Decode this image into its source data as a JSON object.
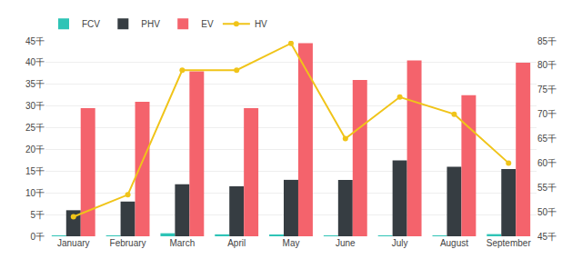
{
  "chart_data": {
    "type": "bar",
    "categories": [
      "January",
      "February",
      "March",
      "April",
      "May",
      "June",
      "July",
      "August",
      "September"
    ],
    "series": [
      {
        "name": "FCV",
        "color": "#2ec4b6",
        "values": [
          0.15,
          0.15,
          0.7,
          0.45,
          0.3,
          0.1,
          0.2,
          0.15,
          0.5
        ]
      },
      {
        "name": "PHV",
        "color": "#363d42",
        "values": [
          6,
          8,
          12,
          11.5,
          13,
          13,
          17.5,
          16,
          15.5
        ]
      },
      {
        "name": "EV",
        "color": "#f4636c",
        "values": [
          29.5,
          31,
          38,
          29.5,
          44.5,
          36,
          40.5,
          32.5,
          40
        ]
      },
      {
        "name": "HV",
        "type": "line",
        "axis": "y2",
        "color": "#f0c419",
        "marker": "circle",
        "values": [
          49,
          53.5,
          79,
          79,
          84.5,
          65,
          73.5,
          70,
          60
        ]
      }
    ],
    "ylim": [
      0,
      45
    ],
    "yticks": [
      {
        "value": 0,
        "label": "0千"
      },
      {
        "value": 5,
        "label": "5千"
      },
      {
        "value": 10,
        "label": "10千"
      },
      {
        "value": 15,
        "label": "15千"
      },
      {
        "value": 20,
        "label": "20千"
      },
      {
        "value": 25,
        "label": "25千"
      },
      {
        "value": 30,
        "label": "30千"
      },
      {
        "value": 35,
        "label": "35千"
      },
      {
        "value": 40,
        "label": "40千"
      },
      {
        "value": 45,
        "label": "45千"
      }
    ],
    "y2lim": [
      45,
      85
    ],
    "y2ticks": [
      {
        "value": 45,
        "label": "45千"
      },
      {
        "value": 50,
        "label": "50千"
      },
      {
        "value": 55,
        "label": "55千"
      },
      {
        "value": 60,
        "label": "60千"
      },
      {
        "value": 65,
        "label": "65千"
      },
      {
        "value": 70,
        "label": "70千"
      },
      {
        "value": 75,
        "label": "75千"
      },
      {
        "value": 80,
        "label": "80千"
      },
      {
        "value": 85,
        "label": "85千"
      }
    ],
    "grid": true,
    "legend": "upper left"
  }
}
